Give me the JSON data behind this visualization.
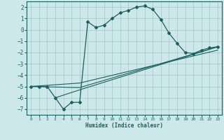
{
  "xlabel": "Humidex (Indice chaleur)",
  "bg_color": "#cde8e8",
  "grid_color": "#aacccc",
  "line_color": "#1a6060",
  "xlim": [
    -0.5,
    23.5
  ],
  "ylim": [
    -7.5,
    2.5
  ],
  "yticks": [
    2,
    1,
    0,
    -1,
    -2,
    -3,
    -4,
    -5,
    -6,
    -7
  ],
  "xticks": [
    0,
    1,
    2,
    3,
    4,
    5,
    6,
    7,
    8,
    9,
    10,
    11,
    12,
    13,
    14,
    15,
    16,
    17,
    18,
    19,
    20,
    21,
    22,
    23
  ],
  "series": [
    {
      "x": [
        0,
        1,
        2,
        3,
        4,
        5,
        6,
        7,
        8,
        9,
        10,
        11,
        12,
        13,
        14,
        15,
        16,
        17,
        18,
        19,
        20,
        21,
        22,
        23
      ],
      "y": [
        -5.0,
        -5.0,
        -5.0,
        -6.0,
        -7.0,
        -6.4,
        -6.4,
        0.7,
        0.2,
        0.4,
        1.0,
        1.5,
        1.7,
        2.0,
        2.1,
        1.8,
        0.9,
        -0.3,
        -1.2,
        -2.0,
        -2.1,
        -1.8,
        -1.6,
        -1.5
      ],
      "marker": true
    },
    {
      "x": [
        0,
        6,
        23
      ],
      "y": [
        -5.0,
        -4.7,
        -1.8
      ],
      "marker": false
    },
    {
      "x": [
        0,
        6,
        23
      ],
      "y": [
        -5.0,
        -5.1,
        -1.5
      ],
      "marker": false
    },
    {
      "x": [
        3,
        6,
        23
      ],
      "y": [
        -6.0,
        -5.3,
        -1.5
      ],
      "marker": false
    }
  ]
}
